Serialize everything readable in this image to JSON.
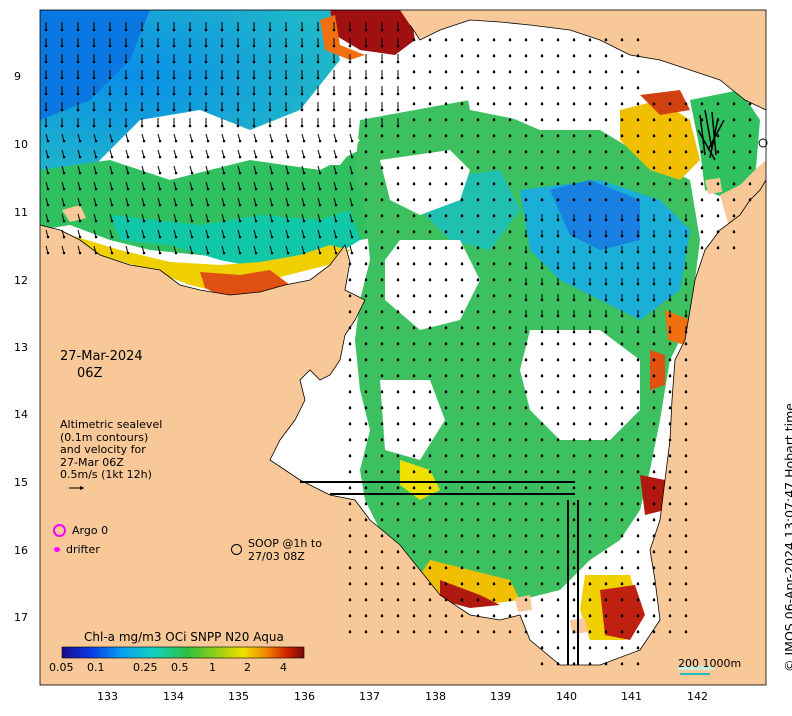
{
  "map": {
    "date": "27-Mar-2024",
    "hour": "06Z",
    "altimetry_legend": [
      "Altimetric sealevel",
      "(0.1m contours)",
      "and velocity for",
      "27-Mar 06Z",
      "0.5m/s (1kt 12h)"
    ],
    "argo_label": "Argo 0",
    "drifter_label": "drifter",
    "soop_label": [
      "SOOP @1h to",
      "27/03 08Z"
    ],
    "scale_label": "200  1000m",
    "credit": "© IMOS 06-Apr-2024 13:07:47 Hobart time",
    "colorbar": {
      "title": "Chl-a mg/m3 OCi SNPP N20 Aqua",
      "ticks": [
        "0.05",
        "0.1",
        "0.25",
        "0.5",
        "1",
        "2",
        "4"
      ],
      "scale": "log",
      "colors": [
        "#1a0a8c",
        "#0a3ce6",
        "#0aa0f0",
        "#10d0c0",
        "#30c040",
        "#a0d010",
        "#f0e000",
        "#f08000",
        "#d02000",
        "#7a0a0a"
      ]
    },
    "x_axis": {
      "labels": [
        "133",
        "134",
        "135",
        "136",
        "137",
        "138",
        "139",
        "140",
        "141",
        "142"
      ],
      "units": "degrees east"
    },
    "y_axis": {
      "labels": [
        "9",
        "10",
        "11",
        "12",
        "13",
        "14",
        "15",
        "16",
        "17"
      ],
      "units": "degrees south"
    },
    "land_color": "#f8c898",
    "ocean_color": "#ffffff",
    "arrow_color": "#000000",
    "argo_color": "#ff00ff"
  }
}
